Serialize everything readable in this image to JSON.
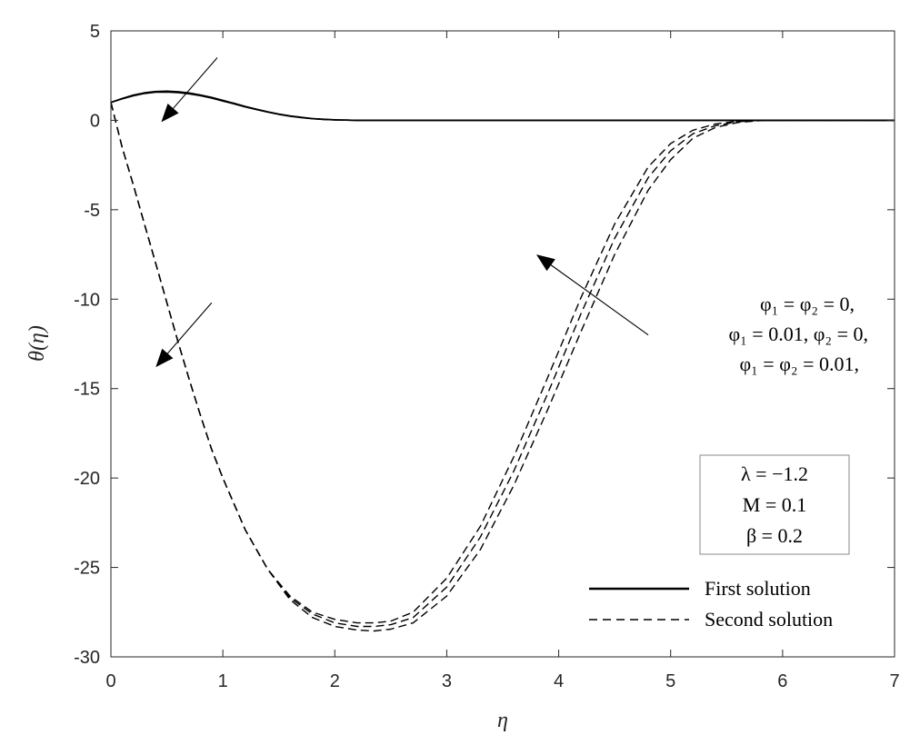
{
  "chart_data": {
    "type": "line",
    "xlabel": "η",
    "ylabel": "θ(η)",
    "xlim": [
      0,
      7
    ],
    "ylim": [
      -30,
      5
    ],
    "xticks": [
      "0",
      "1",
      "2",
      "3",
      "4",
      "5",
      "6",
      "7"
    ],
    "yticks": [
      "5",
      "0",
      "-5",
      "-10",
      "-15",
      "-20",
      "-25",
      "-30"
    ],
    "grid": false,
    "legend_position": "bottom-right",
    "legend": [
      {
        "label": "First solution",
        "style": "solid"
      },
      {
        "label": "Second solution",
        "style": "dashed"
      }
    ],
    "parameter_box": [
      "λ = −1.2",
      "M = 0.1",
      "β = 0.2"
    ],
    "annotation": [
      "φ₁ = φ₂ = 0,",
      "φ₁ = 0.01, φ₂ = 0,",
      "φ₁ = φ₂ = 0.01,"
    ],
    "series": [
      {
        "group": "First solution",
        "style": "solid",
        "x": [
          0,
          0.1,
          0.2,
          0.3,
          0.4,
          0.5,
          0.6,
          0.7,
          0.8,
          0.9,
          1.0,
          1.1,
          1.2,
          1.3,
          1.4,
          1.5,
          1.6,
          1.7,
          1.8,
          1.9,
          2.0,
          2.1,
          2.2,
          2.4,
          2.6,
          7.0
        ],
        "y": [
          1.0,
          1.2,
          1.37,
          1.5,
          1.57,
          1.58,
          1.55,
          1.48,
          1.38,
          1.24,
          1.08,
          0.92,
          0.75,
          0.6,
          0.46,
          0.33,
          0.23,
          0.15,
          0.09,
          0.05,
          0.02,
          0.01,
          0.0,
          0.0,
          0.0,
          0.0
        ]
      },
      {
        "group": "First solution",
        "style": "solid",
        "x": [
          0,
          0.1,
          0.2,
          0.3,
          0.4,
          0.5,
          0.6,
          0.7,
          0.8,
          0.9,
          1.0,
          1.1,
          1.2,
          1.3,
          1.4,
          1.5,
          1.6,
          1.7,
          1.8,
          1.9,
          2.0,
          2.1,
          2.2,
          2.4,
          2.6,
          7.0
        ],
        "y": [
          1.0,
          1.21,
          1.39,
          1.52,
          1.59,
          1.61,
          1.58,
          1.51,
          1.4,
          1.26,
          1.1,
          0.93,
          0.76,
          0.61,
          0.47,
          0.34,
          0.24,
          0.16,
          0.1,
          0.05,
          0.02,
          0.01,
          0.0,
          0.0,
          0.0,
          0.0
        ]
      },
      {
        "group": "First solution",
        "style": "solid",
        "x": [
          0,
          0.1,
          0.2,
          0.3,
          0.4,
          0.5,
          0.6,
          0.7,
          0.8,
          0.9,
          1.0,
          1.1,
          1.2,
          1.3,
          1.4,
          1.5,
          1.6,
          1.7,
          1.8,
          1.9,
          2.0,
          2.1,
          2.2,
          2.4,
          2.6,
          7.0
        ],
        "y": [
          1.0,
          1.22,
          1.41,
          1.54,
          1.61,
          1.63,
          1.6,
          1.53,
          1.42,
          1.28,
          1.12,
          0.95,
          0.78,
          0.62,
          0.48,
          0.35,
          0.25,
          0.17,
          0.1,
          0.06,
          0.03,
          0.01,
          0.0,
          0.0,
          0.0,
          0.0
        ]
      },
      {
        "group": "Second solution",
        "style": "dashed",
        "x": [
          0,
          0.1,
          0.2,
          0.3,
          0.4,
          0.5,
          0.6,
          0.7,
          0.8,
          0.9,
          1.0,
          1.2,
          1.4,
          1.6,
          1.8,
          2.0,
          2.2,
          2.35,
          2.5,
          2.7,
          3.0,
          3.3,
          3.6,
          3.9,
          4.2,
          4.5,
          4.8,
          5.0,
          5.2,
          5.4,
          5.6,
          5.8,
          6.0,
          6.3,
          7.0
        ],
        "y": [
          1.0,
          -1.5,
          -3.6,
          -5.8,
          -8.0,
          -10.2,
          -12.4,
          -14.5,
          -16.5,
          -18.4,
          -20.0,
          -22.9,
          -25.1,
          -26.6,
          -27.5,
          -27.9,
          -28.1,
          -28.1,
          -28.0,
          -27.5,
          -25.6,
          -22.7,
          -18.8,
          -14.4,
          -9.9,
          -5.8,
          -2.6,
          -1.3,
          -0.55,
          -0.2,
          -0.05,
          0.0,
          0.0,
          0.0,
          0.0
        ]
      },
      {
        "group": "Second solution",
        "style": "dashed",
        "x": [
          0,
          0.1,
          0.2,
          0.3,
          0.4,
          0.5,
          0.6,
          0.7,
          0.8,
          0.9,
          1.0,
          1.2,
          1.4,
          1.6,
          1.8,
          2.0,
          2.2,
          2.35,
          2.5,
          2.7,
          3.0,
          3.3,
          3.6,
          3.9,
          4.2,
          4.5,
          4.8,
          5.0,
          5.2,
          5.4,
          5.6,
          5.8,
          6.0,
          6.3,
          7.0
        ],
        "y": [
          1.0,
          -1.5,
          -3.6,
          -5.8,
          -8.0,
          -10.2,
          -12.4,
          -14.5,
          -16.5,
          -18.4,
          -20.0,
          -22.9,
          -25.1,
          -26.7,
          -27.6,
          -28.1,
          -28.3,
          -28.3,
          -28.2,
          -27.8,
          -26.1,
          -23.3,
          -19.6,
          -15.3,
          -10.8,
          -6.6,
          -3.2,
          -1.7,
          -0.75,
          -0.3,
          -0.08,
          0.0,
          0.0,
          0.0,
          0.0
        ]
      },
      {
        "group": "Second solution",
        "style": "dashed",
        "x": [
          0,
          0.1,
          0.2,
          0.3,
          0.4,
          0.5,
          0.6,
          0.7,
          0.8,
          0.9,
          1.0,
          1.2,
          1.4,
          1.6,
          1.8,
          2.0,
          2.2,
          2.35,
          2.5,
          2.7,
          3.0,
          3.3,
          3.6,
          3.9,
          4.2,
          4.5,
          4.8,
          5.0,
          5.2,
          5.4,
          5.6,
          5.8,
          6.0,
          6.3,
          7.0
        ],
        "y": [
          1.0,
          -1.5,
          -3.6,
          -5.8,
          -8.0,
          -10.2,
          -12.4,
          -14.5,
          -16.5,
          -18.4,
          -20.0,
          -22.9,
          -25.1,
          -26.8,
          -27.8,
          -28.3,
          -28.5,
          -28.55,
          -28.45,
          -28.1,
          -26.6,
          -24.0,
          -20.4,
          -16.2,
          -11.8,
          -7.5,
          -3.9,
          -2.2,
          -1.0,
          -0.4,
          -0.12,
          -0.02,
          0.0,
          0.0,
          0.0
        ]
      }
    ],
    "arrows": [
      {
        "from": [
          0.95,
          3.5
        ],
        "to": [
          0.45,
          -0.1
        ]
      },
      {
        "from": [
          0.9,
          -10.2
        ],
        "to": [
          0.4,
          -13.8
        ]
      },
      {
        "from": [
          4.8,
          -12.0
        ],
        "to": [
          3.8,
          -7.5
        ]
      }
    ]
  }
}
